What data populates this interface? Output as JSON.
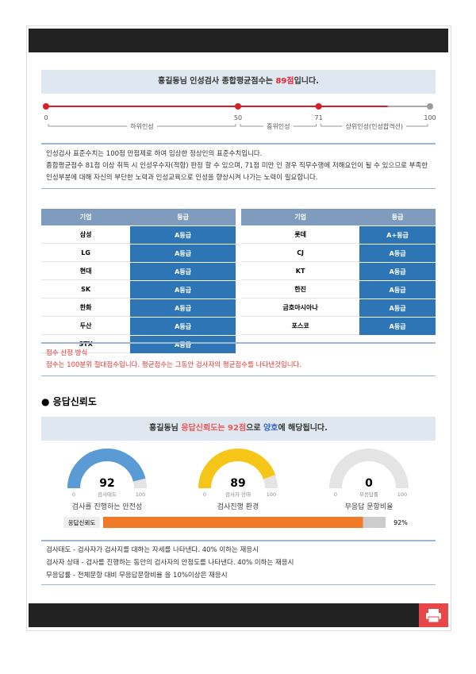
{
  "summary": {
    "prefix": "홍길동님 인성검사 종합평균점수는",
    "score": "89점",
    "suffix": "입니다."
  },
  "scale": {
    "ticks": [
      0,
      50,
      71,
      100
    ],
    "score": 89,
    "segments": [
      "하위인성",
      "중위인성",
      "상위인성(인성합격선)"
    ]
  },
  "description": [
    "인성검사 표준수치는 100점 만점제로 하여 임상한 정상인의 표준수치입니다.",
    "종합평균점수 81점 이상 취득 시 인성우수자(적합) 판정 할 수 있으며, 71점 미만 인 경우 직무수행에 저해요인이 될 수 있으므로 부족한 인성부분에 대해 자신의 부단한 노력과 인성교육으로 인성을 향상시켜 나가는 노력이 필요합니다."
  ],
  "tables": [
    {
      "header": [
        "기업",
        "등급"
      ],
      "rows": [
        [
          "삼성",
          "A등급"
        ],
        [
          "LG",
          "A등급"
        ],
        [
          "현대",
          "A등급"
        ],
        [
          "SK",
          "A등급"
        ],
        [
          "한화",
          "A등급"
        ],
        [
          "두산",
          "A등급"
        ],
        [
          "STX",
          "A등급"
        ]
      ]
    },
    {
      "header": [
        "기업",
        "등급"
      ],
      "rows": [
        [
          "롯데",
          "A+등급"
        ],
        [
          "CJ",
          "A등급"
        ],
        [
          "KT",
          "A등급"
        ],
        [
          "한진",
          "A등급"
        ],
        [
          "금호아시아나",
          "A등급"
        ],
        [
          "포스코",
          "A등급"
        ]
      ]
    }
  ],
  "note": {
    "title": "점수 산정 방식",
    "text": "점수는 100분위 절대점수입니다. 평균점수는 그동안 검사자의 평균점수를 나타낸것입니다."
  },
  "section_title": "응답신뢰도",
  "reliability": {
    "name": "홍길동님",
    "score_text": "응답신뢰도는 92점",
    "mid": "으로",
    "grade": "양호",
    "suffix": "에 해당됩니다."
  },
  "gauges": [
    {
      "value": 92,
      "min": 0,
      "max": 100,
      "sub": "검사태도",
      "label": "검사를 진행하는 안전성",
      "color": "#5b9bd5"
    },
    {
      "value": 89,
      "min": 0,
      "max": 100,
      "sub": "검사자 상태",
      "label": "검사진행 환경",
      "color": "#f5c518"
    },
    {
      "value": 0,
      "min": 0,
      "max": 100,
      "sub": "무응답률",
      "label": "무응답 문항비율",
      "color": "#dddddd"
    }
  ],
  "bar": {
    "label": "응답신뢰도",
    "value": 92,
    "max": 100,
    "value_label": "92%",
    "color": "#f07a28"
  },
  "notes": [
    "검사태도 - 검사자가 검사지를 대하는 자세를 나타낸다. 40% 이하는 재응시",
    "검사자 상태 - 검사를 진행하는 동안의 검사자의 안정도를 나타낸다. 40% 이하는 재응시",
    "무응답률 - 전체문항 대비 무응답문항비율 을 10%이상은 재응시"
  ]
}
